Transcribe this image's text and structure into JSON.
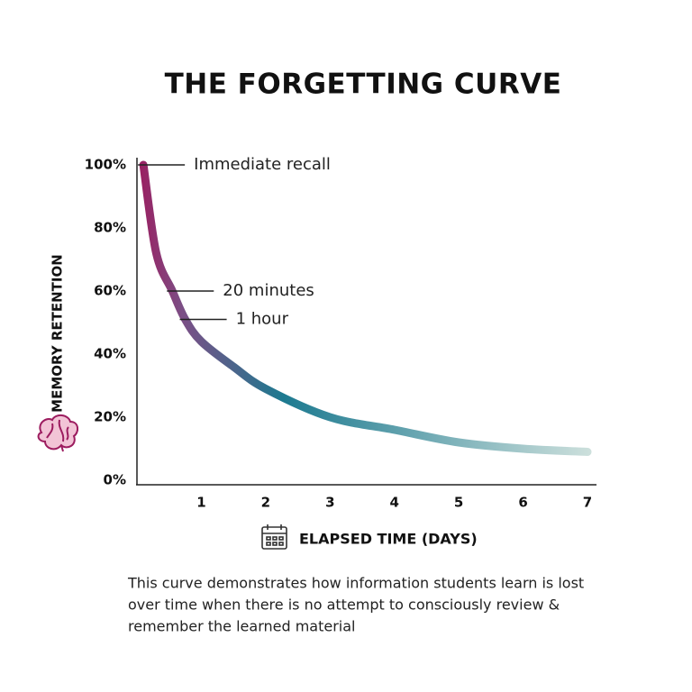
{
  "chart_data": {
    "type": "line",
    "title": "THE FORGETTING CURVE",
    "y_label": "MEMORY RETENTION",
    "x_label": "ELAPSED TIME (DAYS)",
    "xlim": [
      0,
      7
    ],
    "ylim": [
      0,
      100
    ],
    "xticks": [
      1,
      2,
      3,
      4,
      5,
      6,
      7
    ],
    "yticks": [
      {
        "value": 0,
        "label": "0%"
      },
      {
        "value": 20,
        "label": "20%"
      },
      {
        "value": 40,
        "label": "40%"
      },
      {
        "value": 60,
        "label": "60%"
      },
      {
        "value": 80,
        "label": "80%"
      },
      {
        "value": 100,
        "label": "100%"
      }
    ],
    "series": [
      {
        "colors": [
          "#9c1c5f",
          "#7b4f86",
          "#1d7a90",
          "#cfe1dd"
        ],
        "x": [
          0.1,
          0.3,
          0.55,
          0.75,
          1,
          1.5,
          2,
          3,
          4,
          5,
          6,
          7
        ],
        "values": [
          100,
          72,
          60,
          51,
          44,
          36,
          29,
          20,
          16,
          12,
          10,
          9
        ]
      }
    ],
    "annotations": [
      {
        "text": "Immediate recall",
        "x": 0.1,
        "y": 100
      },
      {
        "text": "20 minutes",
        "x": 0.55,
        "y": 60
      },
      {
        "text": "1 hour",
        "x": 0.75,
        "y": 51
      }
    ],
    "caption": [
      "This curve demonstrates how information students learn is lost",
      "over time when there is no attempt to consciously review &",
      "remember the learned material"
    ]
  }
}
